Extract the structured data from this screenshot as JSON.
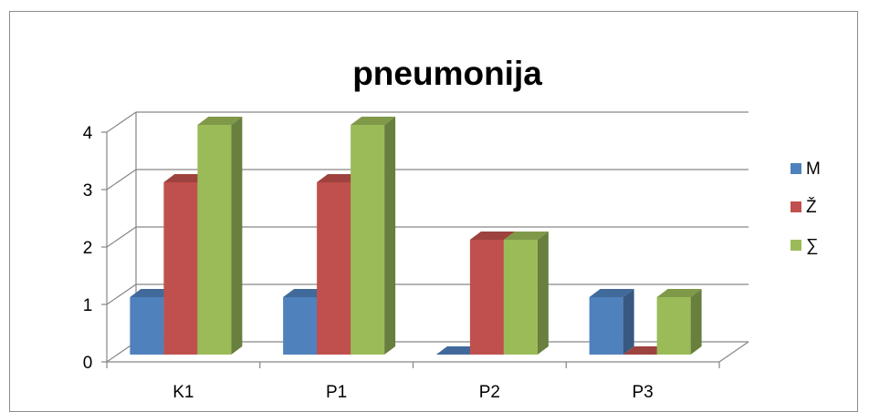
{
  "chart_data": {
    "type": "bar",
    "title": "pneumonija",
    "categories": [
      "K1",
      "P1",
      "P2",
      "P3"
    ],
    "series": [
      {
        "name": "M",
        "values": [
          1,
          1,
          0,
          1
        ],
        "color": "#4f81bd"
      },
      {
        "name": "Ž",
        "values": [
          3,
          3,
          2,
          0
        ],
        "color": "#c0504d"
      },
      {
        "name": "∑",
        "values": [
          4,
          4,
          2,
          1
        ],
        "color": "#9bbb59"
      }
    ],
    "y_ticks": [
      "0",
      "1",
      "2",
      "3",
      "4"
    ],
    "ylim": [
      0,
      4
    ],
    "grid": true,
    "legend": "right",
    "style": "3d-clustered-column"
  }
}
